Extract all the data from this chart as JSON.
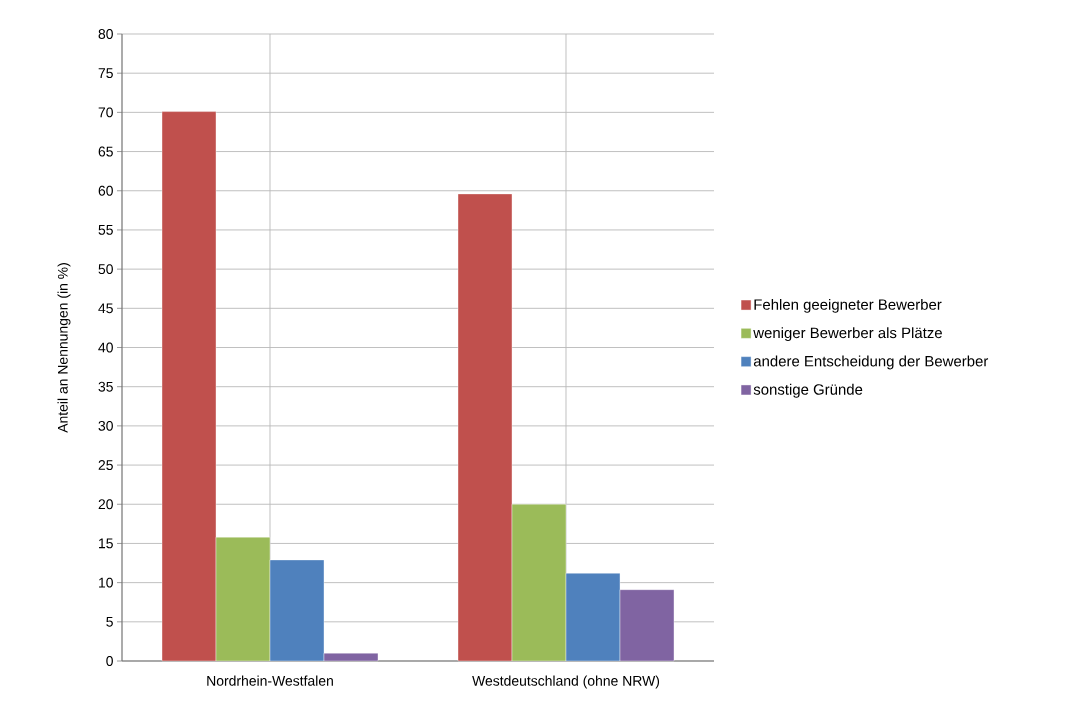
{
  "chart_data": {
    "type": "bar",
    "ylabel": "Anteil an Nennungen (in %)",
    "categories": [
      "Nordrhein-Westfalen",
      "Westdeutschland (ohne NRW)"
    ],
    "series": [
      {
        "name": "Fehlen geeigneter Bewerber",
        "color": "#c0504d",
        "values": [
          70.1,
          59.6
        ]
      },
      {
        "name": "weniger Bewerber als Plätze",
        "color": "#9bbb59",
        "values": [
          15.8,
          20.0
        ]
      },
      {
        "name": "andere Entscheidung der Bewerber",
        "color": "#4f81bd",
        "values": [
          12.9,
          11.2
        ]
      },
      {
        "name": "sonstige Gründe",
        "color": "#8064a2",
        "values": [
          1.0,
          9.1
        ]
      }
    ],
    "ylim": [
      0,
      80
    ],
    "yticks": [
      0,
      5,
      10,
      15,
      20,
      25,
      30,
      35,
      40,
      45,
      50,
      55,
      60,
      65,
      70,
      75,
      80
    ],
    "grid": true,
    "legend": "right"
  }
}
